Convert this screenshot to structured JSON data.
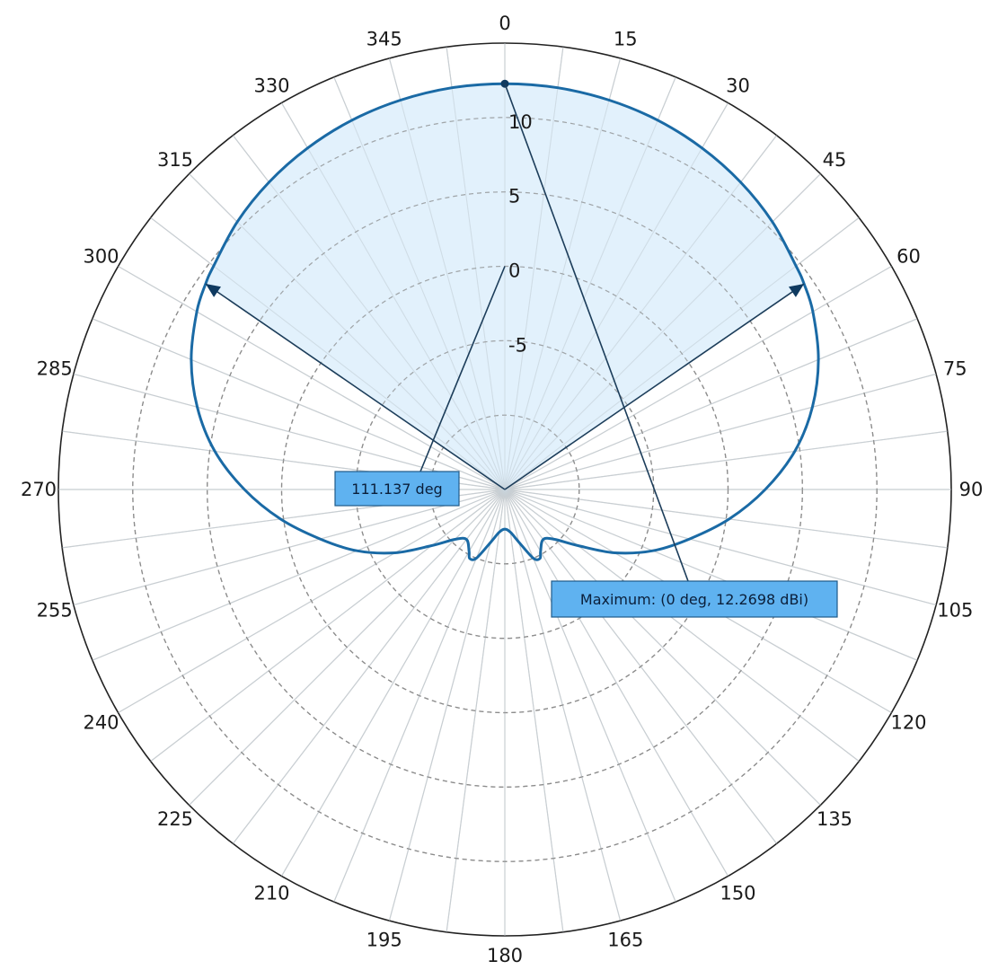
{
  "chart_data": {
    "type": "polar",
    "angle_direction": "clockwise",
    "zero_at": "top",
    "angle_ticks": [
      0,
      15,
      30,
      45,
      60,
      75,
      90,
      105,
      120,
      135,
      150,
      165,
      180,
      195,
      210,
      225,
      240,
      255,
      270,
      285,
      300,
      315,
      330,
      345
    ],
    "angle_tick_labels": [
      "0",
      "15",
      "30",
      "45",
      "60",
      "75",
      "90",
      "105",
      "120",
      "135",
      "150",
      "165",
      "180",
      "195",
      "210",
      "225",
      "240",
      "255",
      "270",
      "285",
      "300",
      "315",
      "330",
      "345"
    ],
    "r_range": [
      -15,
      15
    ],
    "r_ticks": [
      -5,
      0,
      5,
      10
    ],
    "r_tick_labels": [
      "-5",
      "0",
      "5",
      "10"
    ],
    "r_grid_rings": [
      -10,
      -5,
      0,
      5,
      10
    ],
    "angular_grid_step": 7.5,
    "grid": true,
    "series": [
      {
        "angles": [
          0,
          7.5,
          15,
          22.5,
          30,
          37.5,
          45,
          52.5,
          55.5,
          60,
          67.5,
          75,
          82.5,
          90,
          97.5,
          105,
          112.5,
          120,
          127.5,
          135,
          142.5,
          150,
          153,
          157.5,
          165,
          172.5,
          180,
          187.5,
          195,
          202.5,
          207,
          210,
          217.5,
          225,
          232.5,
          240,
          247.5,
          255,
          262.5,
          270,
          277.5,
          285,
          292.5,
          300,
          304.5,
          307.5,
          315,
          322.5,
          330,
          337.5,
          345,
          352.5
        ],
        "values": [
          12.27,
          12.23,
          12.09,
          11.86,
          11.5,
          11.03,
          10.43,
          9.67,
          9.4,
          8.9,
          7.81,
          6.4,
          4.65,
          2.5,
          0.2,
          -2.15,
          -4.24,
          -6.49,
          -8.8,
          -10.26,
          -10.77,
          -10.2,
          -9.8,
          -10.0,
          -11.33,
          -12.1,
          -12.34,
          -12.1,
          -11.33,
          -10.0,
          -9.8,
          -10.2,
          -10.77,
          -10.26,
          -8.8,
          -6.49,
          -4.24,
          -2.15,
          0.2,
          2.5,
          4.65,
          6.4,
          7.81,
          8.9,
          9.4,
          9.67,
          10.43,
          11.03,
          11.5,
          11.86,
          12.09,
          12.23
        ],
        "color": "#1a6aa5",
        "fill": "#ddeffb"
      }
    ],
    "beamwidth_markers_deg": [
      -55.5,
      55.5
    ],
    "beamwidth_marker_r": 9.4,
    "maximum_marker": {
      "angle_deg": 0,
      "value": 12.2698
    },
    "annotations": [
      {
        "text": "111.137 deg",
        "target_angle": 0,
        "target_r": 0
      },
      {
        "text": "Maximum: (0 deg, 12.2698 dBi)",
        "target_angle": 0,
        "target_r": 12.2698
      }
    ]
  }
}
